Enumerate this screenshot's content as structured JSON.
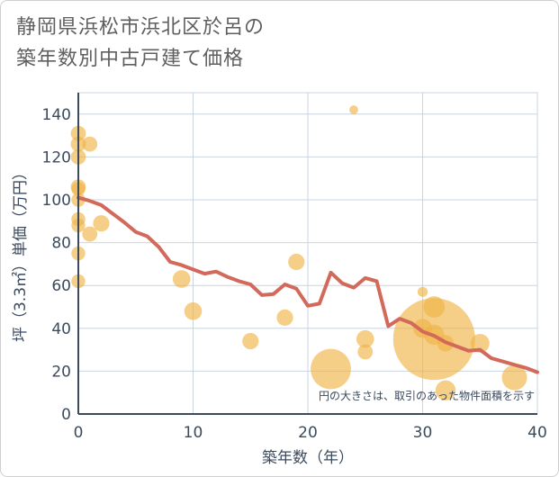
{
  "title_lines": [
    "静岡県浜松市浜北区於呂の",
    "築年数別中古戸建て価格"
  ],
  "chart_data": {
    "type": "scatter",
    "title": "静岡県浜松市浜北区於呂の築年数別中古戸建て価格",
    "xlabel": "築年数（年）",
    "ylabel": "坪（3.3㎡）単価（万円）",
    "xlim": [
      0,
      40
    ],
    "ylim": [
      0,
      150
    ],
    "xticks": [
      0,
      10,
      20,
      30,
      40
    ],
    "yticks": [
      0,
      20,
      40,
      60,
      80,
      100,
      120,
      140
    ],
    "grid": true,
    "note": "円の大きさは、取引のあった物件面積を示す",
    "colors": {
      "bubble": "#f0b347",
      "line": "#d2695a",
      "grid": "#c8d4e0",
      "axis": "#3b4a5c"
    },
    "scatter": [
      {
        "x": 0,
        "y": 131,
        "size": 1.2
      },
      {
        "x": 0,
        "y": 126,
        "size": 1.2
      },
      {
        "x": 0,
        "y": 120,
        "size": 1.2
      },
      {
        "x": 0,
        "y": 106,
        "size": 1.2
      },
      {
        "x": 0,
        "y": 105,
        "size": 1.1
      },
      {
        "x": 0,
        "y": 100,
        "size": 1.1
      },
      {
        "x": 0,
        "y": 91,
        "size": 1.1
      },
      {
        "x": 0,
        "y": 88,
        "size": 1.1
      },
      {
        "x": 0,
        "y": 75,
        "size": 1.1
      },
      {
        "x": 0,
        "y": 62,
        "size": 1.1
      },
      {
        "x": 1,
        "y": 126,
        "size": 1.2
      },
      {
        "x": 1,
        "y": 84,
        "size": 1.2
      },
      {
        "x": 2,
        "y": 89,
        "size": 1.3
      },
      {
        "x": 9,
        "y": 63,
        "size": 1.4
      },
      {
        "x": 10,
        "y": 48,
        "size": 1.4
      },
      {
        "x": 15,
        "y": 34,
        "size": 1.3
      },
      {
        "x": 18,
        "y": 45,
        "size": 1.3
      },
      {
        "x": 19,
        "y": 71,
        "size": 1.3
      },
      {
        "x": 22,
        "y": 21,
        "size": 3.2
      },
      {
        "x": 24,
        "y": 142,
        "size": 0.7
      },
      {
        "x": 25,
        "y": 35,
        "size": 1.4
      },
      {
        "x": 25,
        "y": 29,
        "size": 1.2
      },
      {
        "x": 30,
        "y": 57,
        "size": 0.8
      },
      {
        "x": 30,
        "y": 40,
        "size": 1.5
      },
      {
        "x": 31,
        "y": 50,
        "size": 1.7
      },
      {
        "x": 31,
        "y": 37,
        "size": 1.6
      },
      {
        "x": 31,
        "y": 35,
        "size": 6.5
      },
      {
        "x": 32,
        "y": 33,
        "size": 1.3
      },
      {
        "x": 32,
        "y": 11,
        "size": 1.6
      },
      {
        "x": 35,
        "y": 33,
        "size": 1.5
      },
      {
        "x": 38,
        "y": 17,
        "size": 2.0
      }
    ],
    "line": {
      "x": [
        0,
        1,
        2,
        3,
        4,
        5,
        6,
        7,
        8,
        9,
        10,
        11,
        12,
        13,
        14,
        15,
        16,
        17,
        18,
        19,
        20,
        21,
        22,
        23,
        24,
        25,
        26,
        27,
        28,
        29,
        30,
        31,
        32,
        33,
        34,
        35,
        36,
        37,
        38,
        39,
        40
      ],
      "y": [
        101,
        99.5,
        97.5,
        93.5,
        89.5,
        85,
        83,
        78,
        71,
        69.5,
        67.5,
        65.5,
        66.5,
        64,
        62,
        60.5,
        55.5,
        56,
        60.5,
        58.5,
        50.5,
        51.5,
        66,
        61,
        59,
        63.5,
        62,
        41,
        44.5,
        42.5,
        38.5,
        36.5,
        33.5,
        31.5,
        29.5,
        30,
        26,
        24.5,
        23,
        21.5,
        19.5
      ]
    }
  }
}
